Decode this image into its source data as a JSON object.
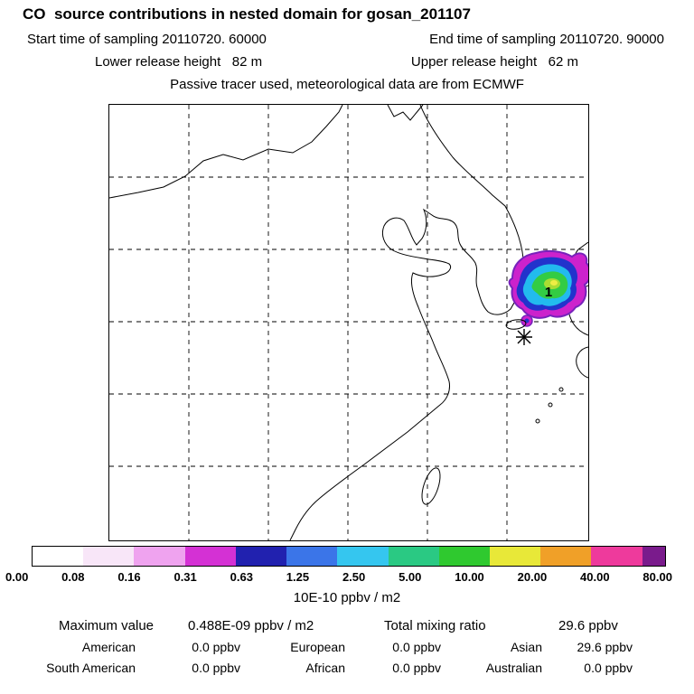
{
  "header": {
    "title": "CO  source contributions in nested domain for gosan_201107",
    "start_time": "Start time of sampling 20110720. 60000",
    "end_time": "End time of sampling 20110720. 90000",
    "lower_release_height": "Lower release height   82 m",
    "upper_release_height": "Upper release height   62 m",
    "tracer_note": "Passive tracer used, meteorological data are from ECMWF"
  },
  "map": {
    "plume": {
      "label": "1",
      "edge": "#7722BB",
      "colors": [
        "#CC22CC",
        "#2233CC",
        "#22BBEE",
        "#33CC44",
        "#AADD33",
        "#EEEE44"
      ]
    }
  },
  "colorbar": {
    "labels": [
      "0.00",
      "0.08",
      "0.16",
      "0.31",
      "0.63",
      "1.25",
      "2.50",
      "5.00",
      "10.00",
      "20.00",
      "40.00",
      "80.00"
    ],
    "colors": [
      "#FFFFFF",
      "#F8E6F8",
      "#EFA3EF",
      "#D431D4",
      "#2121AF",
      "#3B75E8",
      "#35C6EF",
      "#2AC983",
      "#2FC92F",
      "#E8E838",
      "#F0A028",
      "#EE3A9C",
      "#7A1B8C"
    ],
    "units": "10E-10 ppbv / m2"
  },
  "summary": {
    "maximum_label": "Maximum value",
    "maximum_value": "0.488E-09 ppbv / m2",
    "total_label": "Total mixing ratio",
    "total_value": "29.6 ppbv",
    "contributions": [
      {
        "region": "American",
        "value": "0.0 ppbv"
      },
      {
        "region": "European",
        "value": "0.0 ppbv"
      },
      {
        "region": "Asian",
        "value": "29.6 ppbv"
      },
      {
        "region": "South American",
        "value": "0.0 ppbv"
      },
      {
        "region": "African",
        "value": "0.0 ppbv"
      },
      {
        "region": "Australian",
        "value": "0.0 ppbv"
      }
    ]
  },
  "chart_data": {
    "type": "heatmap",
    "title": "CO  source contributions in nested domain for gosan_201107",
    "map_region": "East Asia coastline with dashed 6x6 lat-lon grid",
    "colorbar_boundaries": [
      0.0,
      0.08,
      0.16,
      0.31,
      0.63,
      1.25,
      2.5,
      5.0,
      10.0,
      20.0,
      40.0,
      80.0
    ],
    "colorbar_units": "10E-10 ppbv / m2",
    "maximum_value": "0.488E-09 ppbv / m2",
    "total_mixing_ratio_ppbv": 29.6,
    "contributions_ppbv": {
      "American": 0.0,
      "European": 0.0,
      "Asian": 29.6,
      "South American": 0.0,
      "African": 0.0,
      "Australian": 0.0
    },
    "plume_cells": [
      {
        "label": "1",
        "approx_location": "over Korean Peninsula / Korea Strait"
      }
    ],
    "station_marker": "asterisk southwest of plume (Gosan)"
  }
}
